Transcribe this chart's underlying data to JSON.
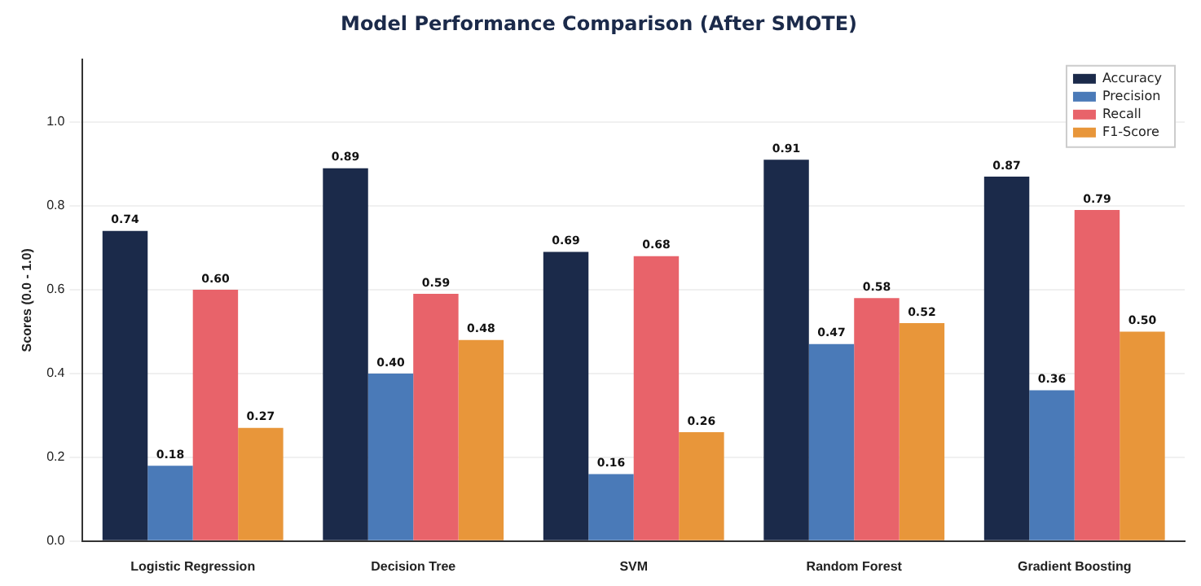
{
  "chart_data": {
    "type": "bar",
    "title": "Model Performance Comparison (After SMOTE)",
    "ylabel": "Scores (0.0 - 1.0)",
    "categories": [
      "Logistic Regression",
      "Decision Tree",
      "SVM",
      "Random Forest",
      "Gradient Boosting"
    ],
    "series": [
      {
        "name": "Accuracy",
        "color": "#1b2a4a",
        "values": [
          0.74,
          0.89,
          0.69,
          0.91,
          0.87
        ],
        "value_labels": [
          "0.74",
          "0.89",
          "0.69",
          "0.91",
          "0.87"
        ]
      },
      {
        "name": "Precision",
        "color": "#4a7ab8",
        "values": [
          0.18,
          0.4,
          0.16,
          0.47,
          0.36
        ],
        "value_labels": [
          "0.18",
          "0.40",
          "0.16",
          "0.47",
          "0.36"
        ]
      },
      {
        "name": "Recall",
        "color": "#e8636a",
        "values": [
          0.6,
          0.59,
          0.68,
          0.58,
          0.79
        ],
        "value_labels": [
          "0.60",
          "0.59",
          "0.68",
          "0.58",
          "0.79"
        ]
      },
      {
        "name": "F1-Score",
        "color": "#e8963a",
        "values": [
          0.27,
          0.48,
          0.26,
          0.52,
          0.5
        ],
        "value_labels": [
          "0.27",
          "0.48",
          "0.26",
          "0.52",
          "0.50"
        ]
      }
    ],
    "ylim": [
      0,
      1.15
    ],
    "yticks": [
      {
        "value": 0,
        "label": "0.0"
      },
      {
        "value": 0.2,
        "label": "0.2"
      },
      {
        "value": 0.4,
        "label": "0.4"
      },
      {
        "value": 0.6,
        "label": "0.6"
      },
      {
        "value": 0.8,
        "label": "0.8"
      },
      {
        "value": 1.0,
        "label": "1.0"
      }
    ],
    "grid": "y",
    "legend": "top right"
  }
}
